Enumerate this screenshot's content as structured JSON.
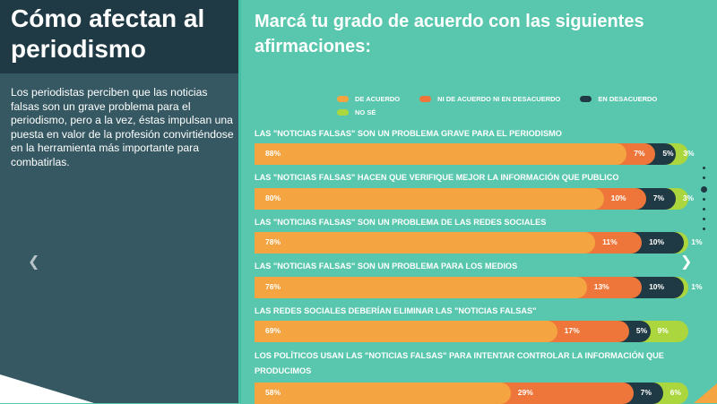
{
  "left": {
    "title": "Cómo afectan al periodismo",
    "description": "Los periodistas perciben que las noticias falsas son un grave problema para el periodismo, pero a la vez, éstas impulsan una puesta en valor de la profesión convirtiéndose en la herramienta más importante para combatirlas.",
    "prev_icon": "chevron-left-icon"
  },
  "main": {
    "heading": "Marcá tu grado de acuerdo con las siguientes afirmaciones:",
    "next_icon": "chevron-right-icon",
    "pagination": {
      "total": 7,
      "active": 3
    }
  },
  "colors": {
    "de_acuerdo": "#f4a542",
    "ni_ni": "#ef763a",
    "en_desacuerdo": "#1f3a44",
    "no_se": "#acd63d",
    "background": "#58c7ad",
    "left_panel": "#355862",
    "left_header": "#1f3a44"
  },
  "chart_data": {
    "type": "bar",
    "orientation": "horizontal",
    "stacked": true,
    "legend_position": "top",
    "legend": [
      "DE ACUERDO",
      "NI DE ACUERDO NI EN DESACUERDO",
      "EN DESACUERDO",
      "NO SÉ"
    ],
    "categories": [
      "LAS \"NOTICIAS FALSAS\" SON UN PROBLEMA GRAVE PARA EL PERIODISMO",
      "LAS \"NOTICIAS FALSAS\" HACEN QUE VERIFIQUE MEJOR LA INFORMACIÓN QUE PUBLICO",
      "LAS \"NOTICIAS FALSAS\" SON UN PROBLEMA DE LAS REDES SOCIALES",
      "LAS \"NOTICIAS FALSAS\" SON UN PROBLEMA PARA LOS MEDIOS",
      "LAS REDES SOCIALES DEBERÍAN ELIMINAR LAS \"NOTICIAS FALSAS\"",
      "LOS POLÍTICOS USAN LAS \"NOTICIAS FALSAS\" PARA INTENTAR CONTROLAR LA INFORMACIÓN QUE PRODUCIMOS"
    ],
    "series": [
      {
        "name": "DE ACUERDO",
        "values": [
          88,
          80,
          78,
          76,
          69,
          58
        ]
      },
      {
        "name": "NI DE ACUERDO NI EN DESACUERDO",
        "values": [
          7,
          10,
          11,
          13,
          17,
          29
        ]
      },
      {
        "name": "EN DESACUERDO",
        "values": [
          5,
          7,
          10,
          10,
          5,
          7
        ]
      },
      {
        "name": "NO SÉ",
        "values": [
          3,
          3,
          1,
          1,
          9,
          6
        ]
      }
    ],
    "value_suffix": "%"
  }
}
